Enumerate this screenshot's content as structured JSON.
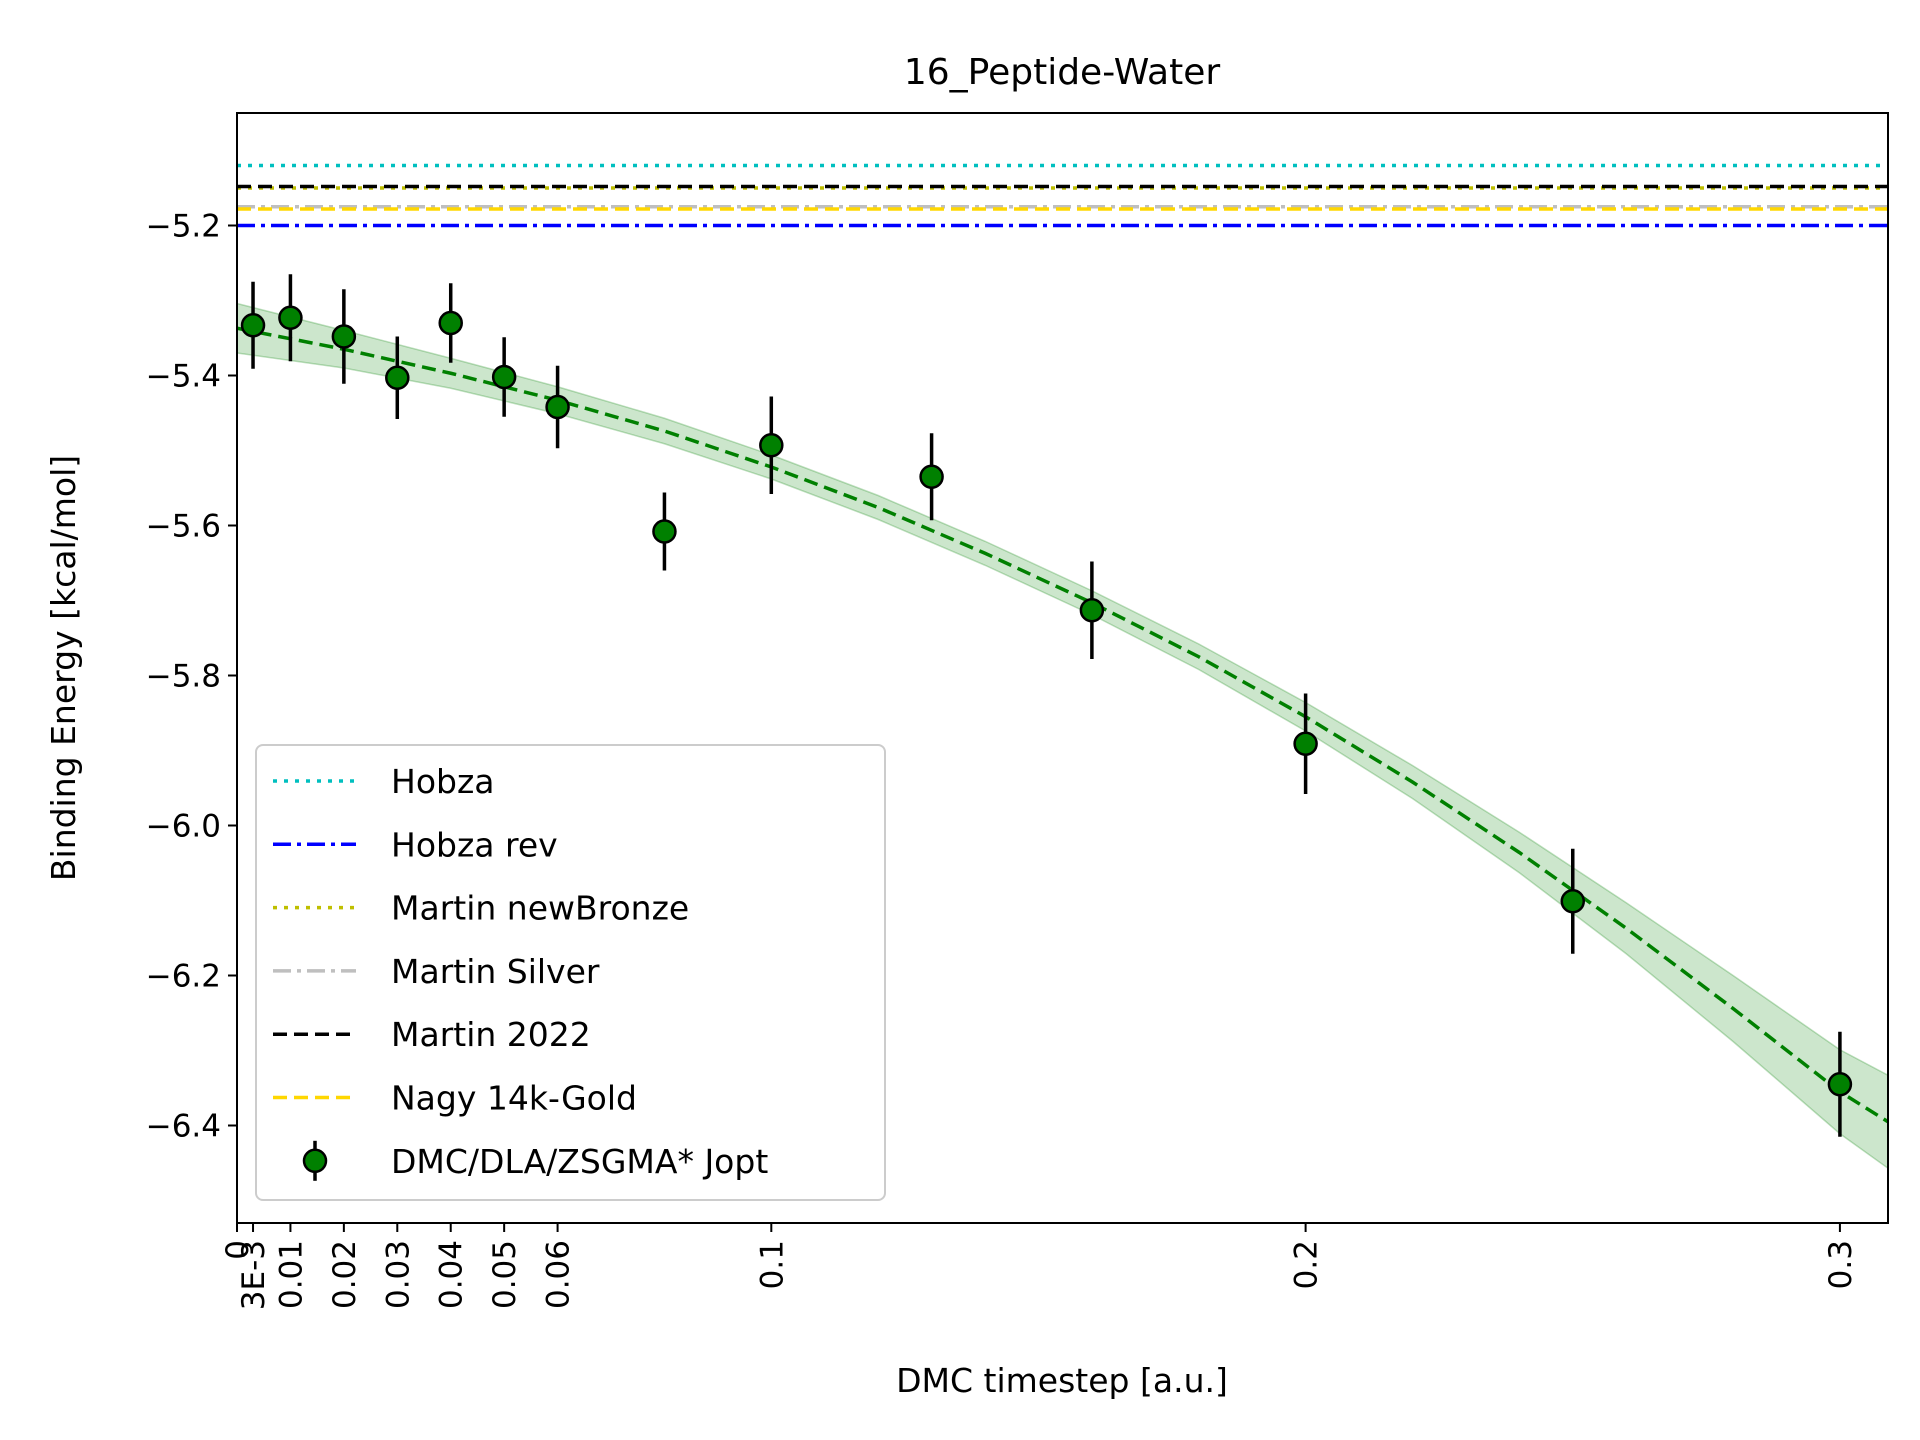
{
  "chart_data": {
    "type": "scatter",
    "title": "16_Peptide-Water",
    "xlabel": "DMC timestep [a.u.]",
    "ylabel": "Binding Energy [kcal/mol]",
    "xlim": [
      0,
      0.309
    ],
    "ylim": [
      -6.53,
      -5.05
    ],
    "grid": false,
    "legend_position": "lower-left",
    "x_ticks": [
      {
        "value": 0,
        "label": "0"
      },
      {
        "value": 0.003,
        "label": "3E-3"
      },
      {
        "value": 0.01,
        "label": "0.01"
      },
      {
        "value": 0.02,
        "label": "0.02"
      },
      {
        "value": 0.03,
        "label": "0.03"
      },
      {
        "value": 0.04,
        "label": "0.04"
      },
      {
        "value": 0.05,
        "label": "0.05"
      },
      {
        "value": 0.06,
        "label": "0.06"
      },
      {
        "value": 0.1,
        "label": "0.1"
      },
      {
        "value": 0.2,
        "label": "0.2"
      },
      {
        "value": 0.3,
        "label": "0.3"
      }
    ],
    "y_ticks": [
      {
        "value": -5.2,
        "label": "−5.2"
      },
      {
        "value": -5.4,
        "label": "−5.4"
      },
      {
        "value": -5.6,
        "label": "−5.6"
      },
      {
        "value": -5.8,
        "label": "−5.8"
      },
      {
        "value": -6.0,
        "label": "−6.0"
      },
      {
        "value": -6.2,
        "label": "−6.2"
      },
      {
        "value": -6.4,
        "label": "−6.4"
      }
    ],
    "reference_lines": [
      {
        "name": "Hobza",
        "value": -5.12,
        "color": "#00bfbf",
        "style": "dotted"
      },
      {
        "name": "Hobza rev",
        "value": -5.2,
        "color": "#0000ff",
        "style": "dashdot"
      },
      {
        "name": "Martin newBronze",
        "value": -5.15,
        "color": "#bfbf00",
        "style": "dotted"
      },
      {
        "name": "Martin Silver",
        "value": -5.175,
        "color": "#bfbfbf",
        "style": "dashdot"
      },
      {
        "name": "Martin 2022",
        "value": -5.148,
        "color": "#000000",
        "style": "dashed"
      },
      {
        "name": "Nagy 14k-Gold",
        "value": -5.178,
        "color": "#ffd700",
        "style": "dashed"
      }
    ],
    "series": [
      {
        "name": "DMC/DLA/ZSGMA* Jopt",
        "color": "#008000",
        "points": [
          {
            "x": 0.003,
            "y": -5.333,
            "err": 0.058
          },
          {
            "x": 0.01,
            "y": -5.323,
            "err": 0.058
          },
          {
            "x": 0.02,
            "y": -5.348,
            "err": 0.063
          },
          {
            "x": 0.03,
            "y": -5.403,
            "err": 0.055
          },
          {
            "x": 0.04,
            "y": -5.33,
            "err": 0.053
          },
          {
            "x": 0.05,
            "y": -5.402,
            "err": 0.053
          },
          {
            "x": 0.06,
            "y": -5.442,
            "err": 0.055
          },
          {
            "x": 0.08,
            "y": -5.608,
            "err": 0.052
          },
          {
            "x": 0.1,
            "y": -5.493,
            "err": 0.065
          },
          {
            "x": 0.13,
            "y": -5.535,
            "err": 0.058
          },
          {
            "x": 0.16,
            "y": -5.713,
            "err": 0.065
          },
          {
            "x": 0.2,
            "y": -5.891,
            "err": 0.067
          },
          {
            "x": 0.25,
            "y": -6.101,
            "err": 0.07
          },
          {
            "x": 0.3,
            "y": -6.345,
            "err": 0.07
          }
        ]
      }
    ],
    "fit": {
      "color": "#008000",
      "style": "dashed",
      "band_color": "#008000",
      "x": [
        0,
        0.02,
        0.04,
        0.06,
        0.08,
        0.1,
        0.12,
        0.14,
        0.16,
        0.18,
        0.2,
        0.22,
        0.24,
        0.26,
        0.28,
        0.3,
        0.309
      ],
      "y": [
        -5.337,
        -5.365,
        -5.397,
        -5.433,
        -5.474,
        -5.522,
        -5.576,
        -5.637,
        -5.703,
        -5.775,
        -5.855,
        -5.942,
        -6.036,
        -6.137,
        -6.244,
        -6.355,
        -6.395
      ],
      "band": [
        0.033,
        0.025,
        0.02,
        0.018,
        0.017,
        0.016,
        0.016,
        0.016,
        0.016,
        0.017,
        0.019,
        0.022,
        0.027,
        0.034,
        0.044,
        0.056,
        0.062
      ]
    }
  }
}
